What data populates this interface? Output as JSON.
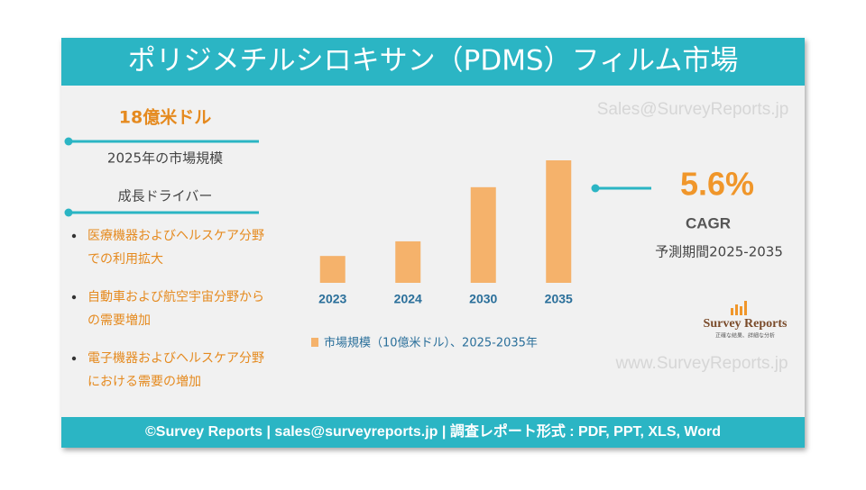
{
  "header": {
    "title": "ポリジメチルシロキサン（PDMS）フィルム市場"
  },
  "market_size": {
    "value": "18億米ドル",
    "label": "2025年の市場規模"
  },
  "drivers": {
    "title": "成長ドライバー",
    "items": [
      [
        "医療機器およびヘルスケア分野",
        "での利用拡大"
      ],
      [
        "自動車および航空宇宙分野から",
        "の需要増加"
      ],
      [
        "電子機器およびヘルスケア分野",
        "における需要の増加"
      ]
    ]
  },
  "cagr": {
    "value": "5.6%",
    "label": "CAGR",
    "period": "予測期間2025-2035"
  },
  "watermarks": [
    "Sales@SurveyReports.jp",
    "www.SurveyReports.jp"
  ],
  "logo": {
    "name": "Survey Reports",
    "tagline": "正確な結果、詳細な分析"
  },
  "footer": {
    "text": "©Survey Reports | sales@surveyreports.jp | 調査レポート形式 : PDF, PPT, XLS, Word"
  },
  "chart_data": {
    "type": "bar",
    "categories": [
      "2023",
      "2024",
      "2030",
      "2035"
    ],
    "series": [
      {
        "name": "市場規模（10億米ドル）、2025-2035年",
        "color": "#f5b26b",
        "values": [
          0.68,
          1.05,
          2.42,
          3.1
        ]
      }
    ],
    "ylim": [
      0,
      3.1
    ]
  }
}
